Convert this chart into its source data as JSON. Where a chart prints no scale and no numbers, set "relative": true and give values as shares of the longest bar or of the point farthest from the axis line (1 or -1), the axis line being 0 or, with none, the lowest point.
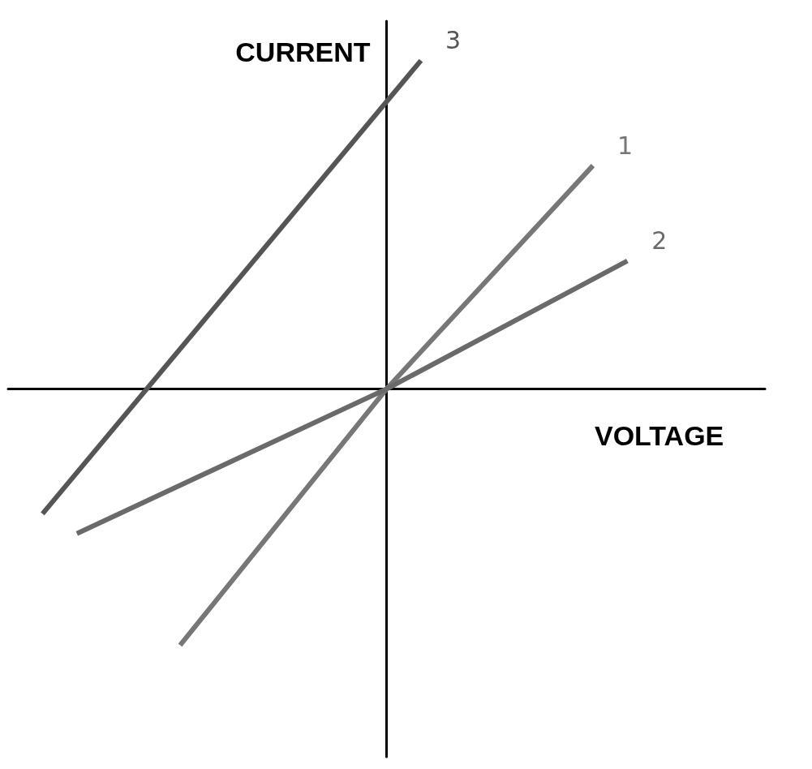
{
  "chart_data": {
    "type": "line",
    "relative": true,
    "xlabel": "VOLTAGE",
    "ylabel": "CURRENT",
    "tick_labels": false,
    "grid": false,
    "legend": false,
    "marker": "none",
    "line_style": "solid",
    "categories": [
      null,
      null,
      null,
      null,
      null,
      null,
      null,
      null,
      null,
      null,
      null,
      null,
      null,
      null,
      null,
      null,
      null,
      null,
      null,
      null,
      null,
      null,
      null
    ],
    "series": [
      {
        "name": "1",
        "color": "#777777",
        "values": [
          null,
          null,
          null,
          null,
          null,
          -0.78,
          null,
          null,
          null,
          null,
          null,
          0,
          null,
          null,
          null,
          null,
          null,
          0.68,
          null,
          null,
          null,
          null,
          null
        ]
      },
      {
        "name": "2",
        "color": "#6a6a6a",
        "values": [
          null,
          null,
          -0.44,
          null,
          null,
          null,
          null,
          null,
          null,
          null,
          null,
          0,
          null,
          null,
          null,
          null,
          null,
          null,
          0.39,
          null,
          null,
          null,
          null
        ]
      },
      {
        "name": "3",
        "color": "#555555",
        "values": [
          null,
          -0.38,
          null,
          null,
          null,
          null,
          null,
          null,
          null,
          null,
          null,
          null,
          1,
          null,
          null,
          null,
          null,
          null,
          null,
          null,
          null,
          null,
          null
        ]
      }
    ]
  }
}
